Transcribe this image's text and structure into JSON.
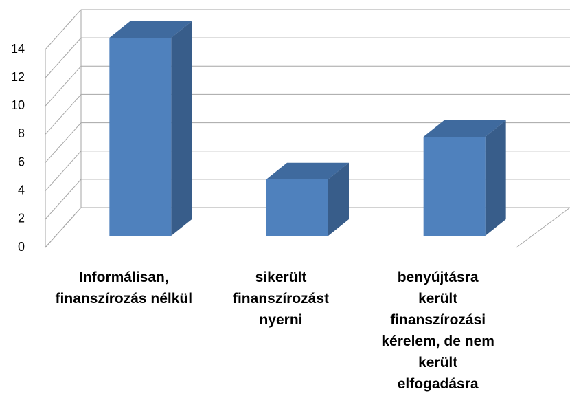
{
  "chart_data": {
    "type": "bar3d",
    "categories": [
      "Informálisan, finanszírozás nélkül",
      "sikerült finanszírozást nyerni",
      "benyújtásra került finanszírozási kérelem, de nem került elfogadásra"
    ],
    "values": [
      14,
      4,
      7
    ],
    "color": "#4f81bd",
    "ylim": [
      0,
      14
    ],
    "yticks": [
      0,
      2,
      4,
      6,
      8,
      10,
      12,
      14
    ],
    "grid": true
  }
}
